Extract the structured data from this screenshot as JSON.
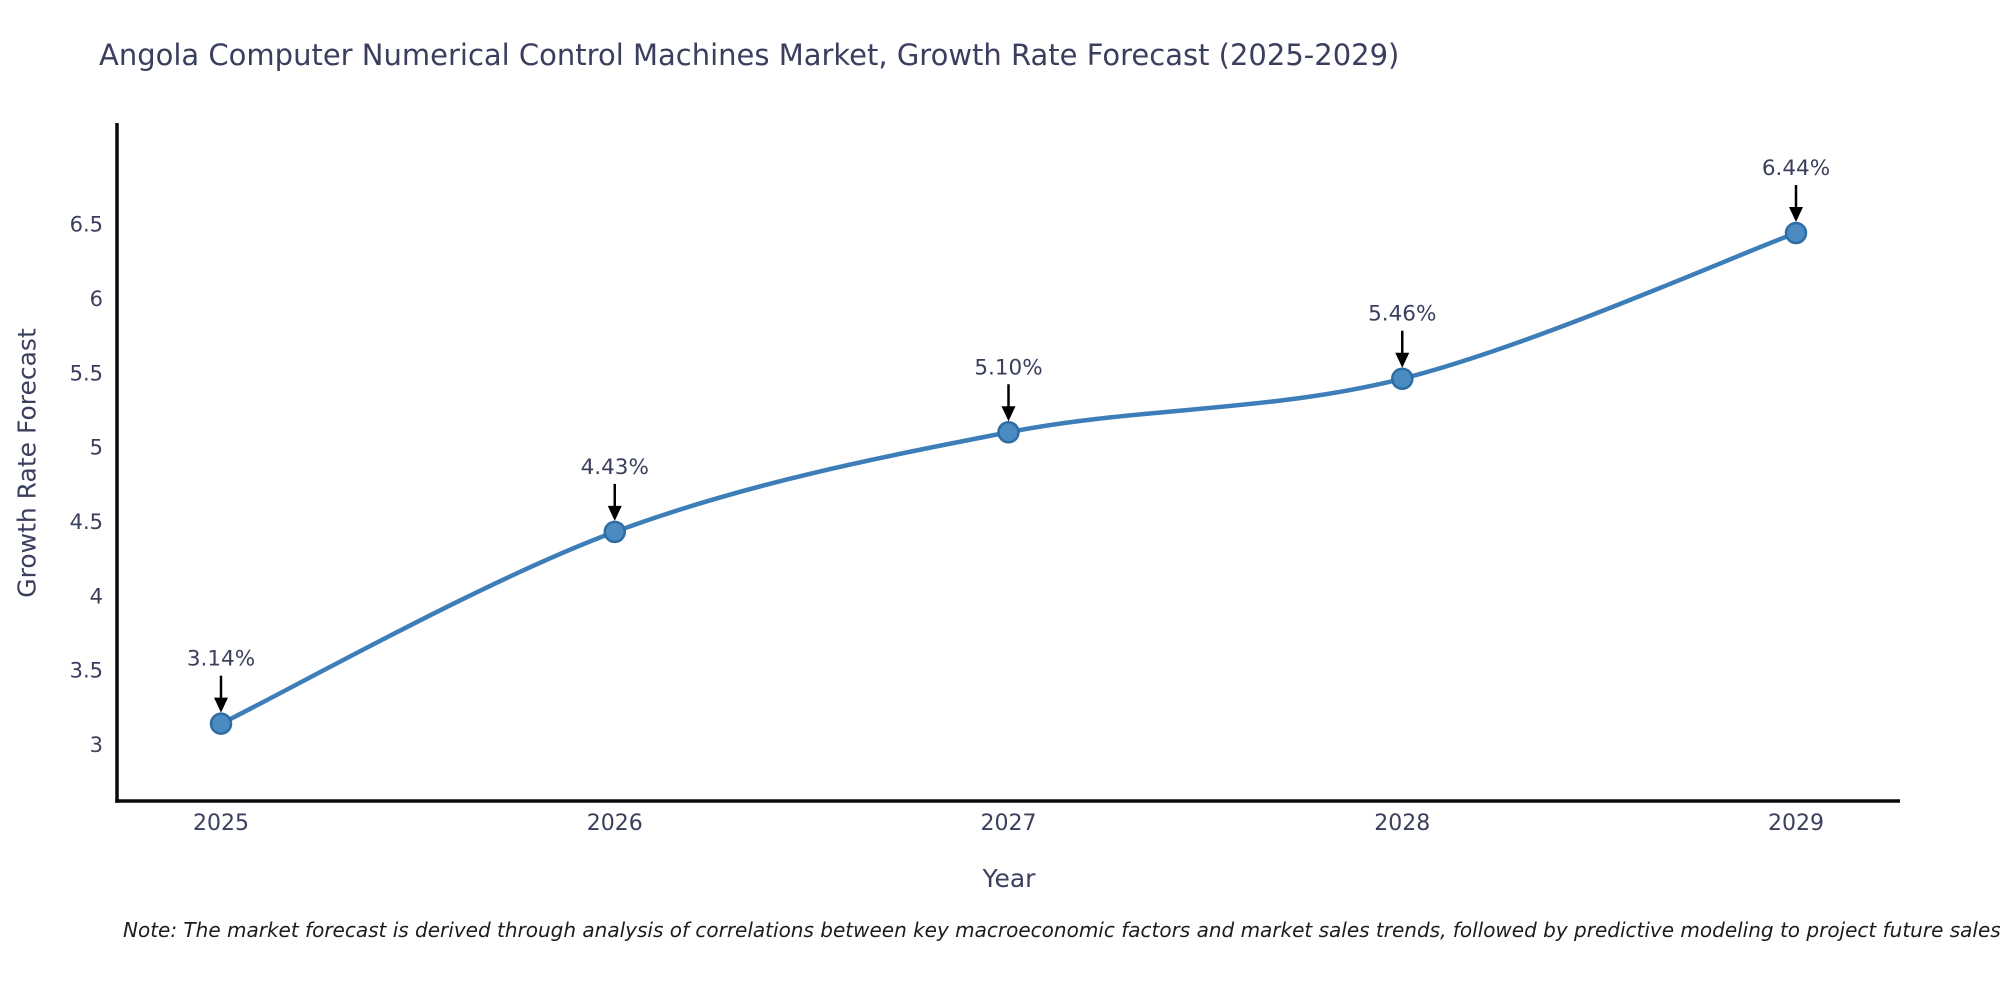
{
  "title": "Angola Computer Numerical Control Machines Market, Growth Rate Forecast (2025-2029)",
  "note": "Note: The market forecast is derived through analysis of correlations between key macroeconomic factors and market sales trends, followed by predictive modeling to project future sales",
  "colors": {
    "background": "#ffffff",
    "text": "#3b3f5e",
    "axis_spine": "#0a0a0a",
    "line": "#3d7eb8",
    "marker_fill": "#4a8bc2",
    "marker_edge": "#2e6da4",
    "annotation_arrow": "#000000",
    "annotation_text": "#3b3f5e"
  },
  "chart_data": {
    "type": "line",
    "title": "Angola Computer Numerical Control Machines Market, Growth Rate Forecast (2025-2029)",
    "xlabel": "Year",
    "ylabel": "Growth Rate Forecast",
    "categories": [
      "2025",
      "2026",
      "2027",
      "2028",
      "2029"
    ],
    "values": [
      3.14,
      4.43,
      5.1,
      5.46,
      6.44
    ],
    "point_labels": [
      "3.14%",
      "4.43%",
      "5.10%",
      "5.46%",
      "6.44%"
    ],
    "yticks": [
      3,
      3.5,
      4,
      4.5,
      5,
      5.5,
      6,
      6.5
    ],
    "ylim": [
      2.62,
      7.18
    ],
    "grid": false,
    "legend_position": "none",
    "line_shape": "spline",
    "marker": "circle",
    "annotations": "value labels with downward arrows above each point"
  }
}
